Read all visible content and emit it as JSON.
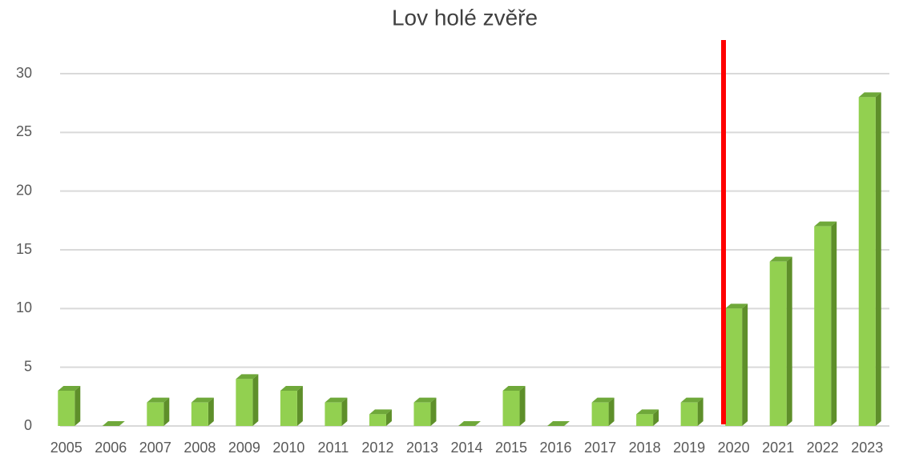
{
  "chart_data": {
    "type": "bar",
    "title": "Lov holé zvěře",
    "categories": [
      "2005",
      "2006",
      "2007",
      "2008",
      "2009",
      "2010",
      "2011",
      "2012",
      "2013",
      "2014",
      "2015",
      "2016",
      "2017",
      "2018",
      "2019",
      "2020",
      "2021",
      "2022",
      "2023"
    ],
    "values": [
      3,
      0,
      2,
      2,
      4,
      3,
      2,
      1,
      2,
      0,
      3,
      0,
      2,
      1,
      2,
      10,
      14,
      17,
      28
    ],
    "color": "#92d050",
    "ylim": [
      0,
      30
    ],
    "yticks": [
      0,
      5,
      10,
      15,
      20,
      25,
      30
    ],
    "grid": true
  }
}
